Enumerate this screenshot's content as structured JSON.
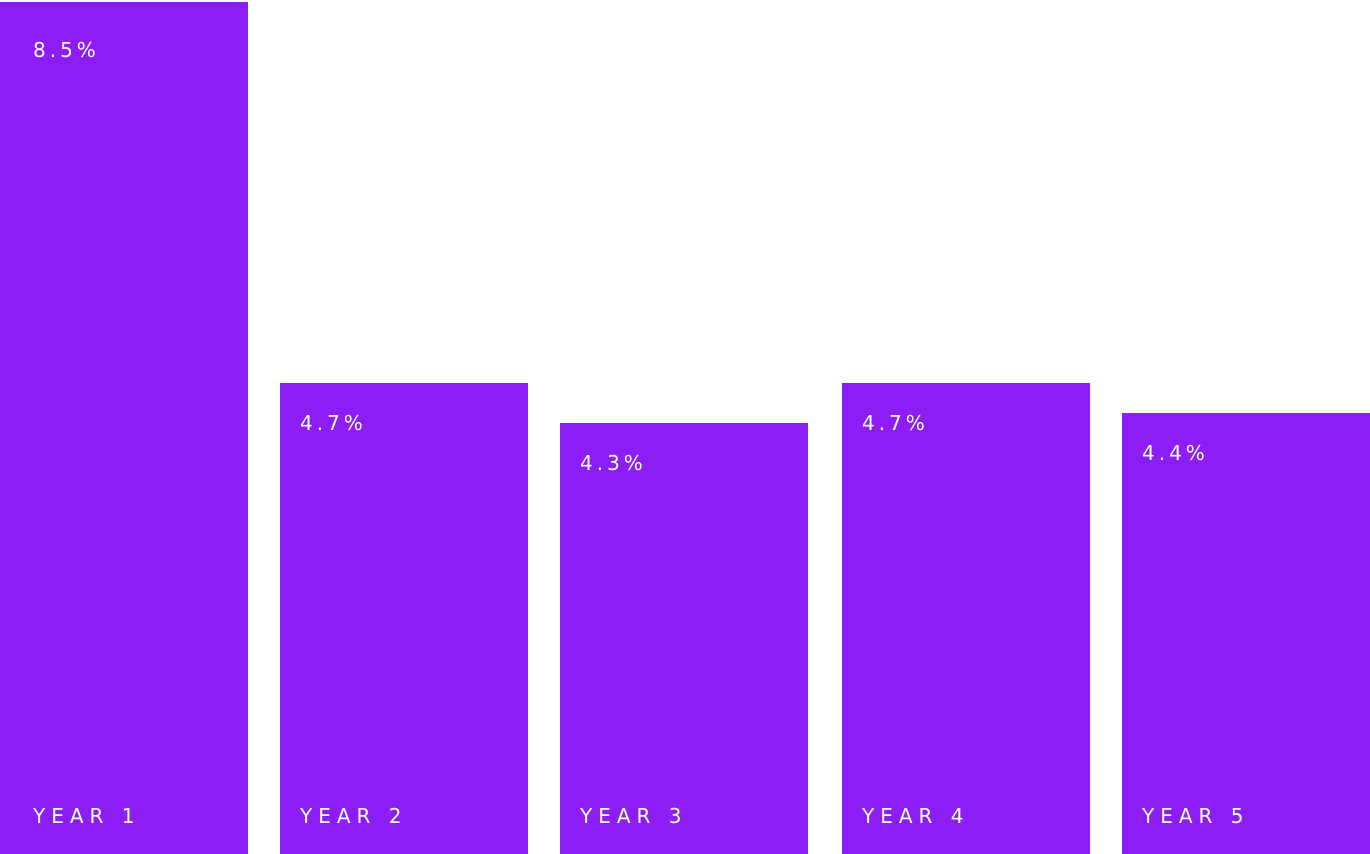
{
  "chart_data": {
    "type": "bar",
    "title": "",
    "xlabel": "",
    "ylabel": "",
    "categories": [
      "YEAR 1",
      "YEAR 2",
      "YEAR 3",
      "YEAR 4",
      "YEAR 5"
    ],
    "values": [
      8.5,
      4.7,
      4.3,
      4.7,
      4.4
    ],
    "value_labels": [
      "8.5%",
      "4.7%",
      "4.3%",
      "4.7%",
      "4.4%"
    ],
    "ylim": [
      0,
      8.5
    ],
    "grid": false,
    "bar_color": "#8c1ef5",
    "text_color": "#ffffff"
  }
}
